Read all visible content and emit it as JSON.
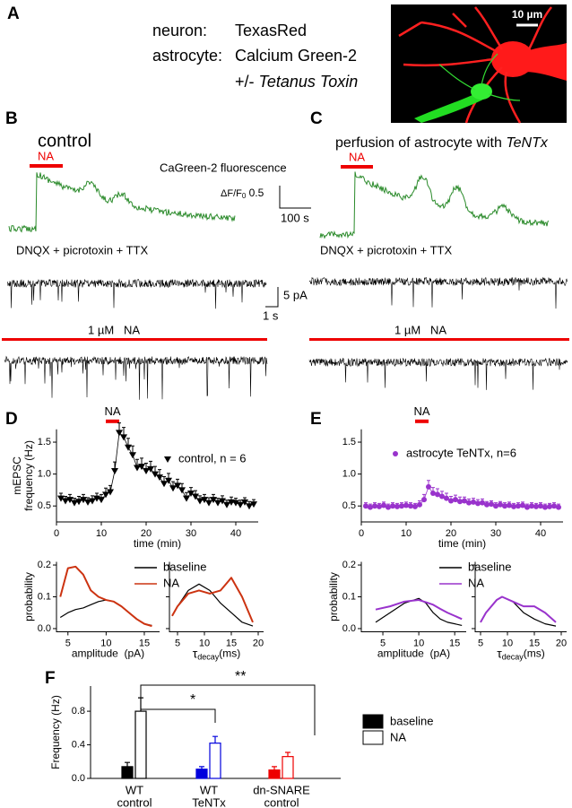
{
  "panel_labels": [
    "A",
    "B",
    "C",
    "D",
    "E",
    "F"
  ],
  "panel_a": {
    "rows": [
      {
        "label": "neuron:",
        "value": "TexasRed"
      },
      {
        "label": "astrocyte:",
        "value": "Calcium Green-2"
      }
    ],
    "toxin": {
      "prefix": "+/- ",
      "name": "Tetanus Toxin"
    },
    "scale_bar": "10 µm"
  },
  "panel_b": {
    "title": "control",
    "stimulus": "NA",
    "trace_label": "CaGreen-2 fluorescence",
    "df_scale": {
      "symbol": "ΔF/F",
      "sub": "0",
      "value": " 0.5"
    },
    "time_scale": "100 s",
    "drugs": "DNQX + picrotoxin + TTX",
    "current_scale": "5 pA",
    "time_scale_2": "1 s",
    "drug_bar": "1 µM   NA"
  },
  "panel_c": {
    "title": {
      "text": "perfusion of astrocyte with ",
      "italic": "TeNTx"
    },
    "stimulus": "NA",
    "drugs": "DNQX + picrotoxin + TTX",
    "drug_bar": "1 µM   NA"
  },
  "chart_data": [
    {
      "type": "errorbar",
      "ylabel": [
        "mEPSC",
        "frequency (Hz)"
      ],
      "xlabel": "time (min)",
      "xlim": [
        0,
        45
      ],
      "xticks": [
        0,
        10,
        20,
        30,
        40
      ],
      "ylim": [
        0.25,
        1.7
      ],
      "yticks": [
        0.5,
        {
          "value": 1.0,
          "label": "1.0"
        },
        1.5
      ],
      "stimulus": {
        "label": "NA",
        "start": 11,
        "end": 14
      },
      "series": [
        {
          "name": "control, n = 6",
          "color": "#000000",
          "marker": "triangle-down",
          "x": [
            1,
            2,
            3,
            4,
            5,
            6,
            7,
            8,
            9,
            10,
            11,
            12,
            13,
            14,
            15,
            16,
            17,
            18,
            19,
            20,
            21,
            22,
            23,
            24,
            25,
            26,
            27,
            28,
            29,
            30,
            31,
            32,
            33,
            34,
            35,
            36,
            37,
            38,
            39,
            40,
            41,
            42,
            43,
            44
          ],
          "values": [
            0.62,
            0.58,
            0.6,
            0.55,
            0.57,
            0.6,
            0.56,
            0.58,
            0.62,
            0.6,
            0.68,
            0.72,
            1.05,
            1.65,
            1.58,
            1.42,
            1.3,
            1.1,
            1.12,
            1.05,
            1.08,
            1.0,
            0.95,
            0.85,
            0.9,
            0.78,
            0.82,
            0.75,
            0.62,
            0.7,
            0.65,
            0.58,
            0.6,
            0.55,
            0.6,
            0.55,
            0.58,
            0.52,
            0.56,
            0.55,
            0.52,
            0.56,
            0.5,
            0.53
          ],
          "errors": [
            0.08,
            0.07,
            0.08,
            0.07,
            0.08,
            0.08,
            0.07,
            0.08,
            0.08,
            0.08,
            0.1,
            0.1,
            0.14,
            0.15,
            0.15,
            0.14,
            0.14,
            0.13,
            0.13,
            0.12,
            0.12,
            0.12,
            0.12,
            0.11,
            0.11,
            0.1,
            0.1,
            0.1,
            0.09,
            0.09,
            0.09,
            0.08,
            0.08,
            0.08,
            0.08,
            0.07,
            0.08,
            0.07,
            0.08,
            0.07,
            0.07,
            0.07,
            0.07,
            0.07
          ]
        }
      ]
    },
    {
      "type": "line",
      "ylabel": [
        "probability"
      ],
      "xlabel": "amplitude  (pA)",
      "xlim": [
        3.5,
        17
      ],
      "xticks": [
        5,
        10,
        15
      ],
      "ylim": [
        -0.01,
        0.21
      ],
      "yticks": [
        {
          "value": 0.0,
          "label": "0.0"
        },
        0.1,
        0.2
      ],
      "x": [
        4,
        5,
        6,
        7,
        8,
        9,
        10,
        11,
        12,
        13,
        14,
        15,
        16
      ],
      "series": [
        {
          "name": "baseline",
          "color": "#000000",
          "values": [
            0.035,
            0.05,
            0.06,
            0.065,
            0.075,
            0.085,
            0.09,
            0.085,
            0.07,
            0.05,
            0.03,
            0.015,
            0.01
          ]
        },
        {
          "name": "NA",
          "color": "#cc3311",
          "values": [
            0.1,
            0.19,
            0.195,
            0.17,
            0.12,
            0.1,
            0.09,
            0.085,
            0.07,
            0.05,
            0.03,
            0.015,
            0.008
          ]
        }
      ]
    },
    {
      "type": "line",
      "xlabel": {
        "symbol": "τ",
        "sub": "decay",
        "unit": "(ms)"
      },
      "ytick_labels": false,
      "xlim": [
        3.5,
        21
      ],
      "xticks": [
        5,
        10,
        15,
        20
      ],
      "ylim": [
        -0.01,
        0.21
      ],
      "yticks": [
        0,
        0.1,
        0.2
      ],
      "x": [
        4,
        5,
        7,
        9,
        11,
        13,
        15,
        17,
        19
      ],
      "series": [
        {
          "name": "baseline",
          "color": "#000000",
          "values": [
            0.04,
            0.07,
            0.12,
            0.14,
            0.12,
            0.08,
            0.05,
            0.02,
            0.008
          ]
        },
        {
          "name": "NA",
          "color": "#cc3311",
          "values": [
            0.04,
            0.07,
            0.11,
            0.12,
            0.11,
            0.12,
            0.16,
            0.1,
            0.02
          ]
        }
      ]
    },
    {
      "type": "errorbar",
      "xlabel": "time (min)",
      "xlim": [
        0,
        45
      ],
      "xticks": [
        0,
        10,
        20,
        30,
        40
      ],
      "ylim": [
        0.25,
        1.7
      ],
      "yticks": [
        0.5,
        {
          "value": 1.0,
          "label": "1.0"
        },
        1.5
      ],
      "stimulus": {
        "label": "NA",
        "start": 12,
        "end": 15
      },
      "series": [
        {
          "name": "astrocyte TeNTx, n=6",
          "color": "#9933cc",
          "marker": "circle",
          "x": [
            1,
            2,
            3,
            4,
            5,
            6,
            7,
            8,
            9,
            10,
            11,
            12,
            13,
            14,
            15,
            16,
            17,
            18,
            19,
            20,
            21,
            22,
            23,
            24,
            25,
            26,
            27,
            28,
            29,
            30,
            31,
            32,
            33,
            34,
            35,
            36,
            37,
            38,
            39,
            40,
            41,
            42,
            43,
            44
          ],
          "values": [
            0.5,
            0.48,
            0.5,
            0.49,
            0.51,
            0.48,
            0.5,
            0.49,
            0.5,
            0.51,
            0.5,
            0.49,
            0.52,
            0.6,
            0.8,
            0.7,
            0.68,
            0.65,
            0.62,
            0.58,
            0.6,
            0.57,
            0.58,
            0.55,
            0.56,
            0.54,
            0.55,
            0.52,
            0.53,
            0.5,
            0.52,
            0.5,
            0.51,
            0.49,
            0.5,
            0.51,
            0.48,
            0.5,
            0.49,
            0.5,
            0.48,
            0.49,
            0.5,
            0.48
          ],
          "errors": [
            0.05,
            0.05,
            0.05,
            0.05,
            0.05,
            0.05,
            0.05,
            0.05,
            0.05,
            0.05,
            0.05,
            0.05,
            0.06,
            0.08,
            0.1,
            0.09,
            0.09,
            0.08,
            0.08,
            0.07,
            0.07,
            0.07,
            0.06,
            0.06,
            0.06,
            0.06,
            0.06,
            0.05,
            0.05,
            0.05,
            0.05,
            0.05,
            0.05,
            0.05,
            0.05,
            0.05,
            0.05,
            0.05,
            0.05,
            0.05,
            0.05,
            0.05,
            0.05,
            0.05
          ]
        }
      ]
    },
    {
      "type": "line",
      "ylabel": [
        "probability"
      ],
      "xlabel": "amplitude  (pA)",
      "xlim": [
        2,
        16.6
      ],
      "xticks": [
        5,
        10,
        15
      ],
      "ylim": [
        -0.01,
        0.21
      ],
      "yticks": [
        {
          "value": 0.0,
          "label": "0.0"
        },
        0.1,
        0.2
      ],
      "x": [
        4,
        6,
        8,
        10,
        11,
        12,
        13,
        14,
        16
      ],
      "series": [
        {
          "name": "baseline",
          "color": "#000000",
          "values": [
            0.02,
            0.05,
            0.08,
            0.095,
            0.08,
            0.05,
            0.03,
            0.02,
            0.01
          ]
        },
        {
          "name": "NA",
          "color": "#9933cc",
          "values": [
            0.06,
            0.07,
            0.085,
            0.09,
            0.083,
            0.075,
            0.062,
            0.05,
            0.03
          ]
        }
      ]
    },
    {
      "type": "line",
      "xlabel": {
        "symbol": "τ",
        "sub": "decay",
        "unit": "(ms)"
      },
      "ytick_labels": false,
      "xlim": [
        4,
        21
      ],
      "xticks": [
        5,
        10,
        15,
        20
      ],
      "ylim": [
        -0.01,
        0.21
      ],
      "yticks": [
        0,
        0.1,
        0.2
      ],
      "x": [
        5,
        6,
        8,
        9,
        11,
        13,
        15,
        17,
        19
      ],
      "series": [
        {
          "name": "baseline",
          "color": "#000000",
          "values": [
            0.02,
            0.05,
            0.09,
            0.1,
            0.085,
            0.05,
            0.03,
            0.015,
            0.008
          ]
        },
        {
          "name": "NA",
          "color": "#9933cc",
          "values": [
            0.02,
            0.05,
            0.09,
            0.1,
            0.085,
            0.07,
            0.07,
            0.05,
            0.02
          ]
        }
      ]
    },
    {
      "type": "bar",
      "ylabel": [
        "Frequency (Hz)"
      ],
      "categories": [
        [
          "WT",
          "control"
        ],
        [
          "WT",
          "TeNTx"
        ],
        [
          "dn-SNARE",
          "control"
        ]
      ],
      "ylim": [
        0,
        1.1
      ],
      "yticks": [
        {
          "value": 0.0,
          "label": "0.0"
        },
        0.4,
        0.8
      ],
      "series": [
        {
          "name": "baseline",
          "color": "#000000",
          "fill": true,
          "bar_colors": [
            "#000000",
            "#0000dd",
            "#ee0000"
          ],
          "values": [
            0.14,
            0.11,
            0.1
          ],
          "errors": [
            0.05,
            0.03,
            0.04
          ]
        },
        {
          "name": "NA",
          "color": "#000000",
          "fill": false,
          "bar_colors": [
            "#000000",
            "#0000dd",
            "#ee0000"
          ],
          "values": [
            0.8,
            0.42,
            0.26
          ],
          "errors": [
            0.16,
            0.08,
            0.05
          ]
        }
      ],
      "annotations": [
        "*",
        "**"
      ]
    }
  ]
}
